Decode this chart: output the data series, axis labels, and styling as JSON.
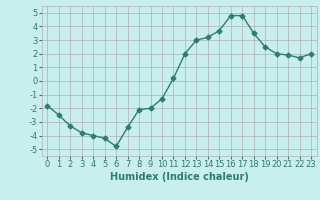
{
  "x": [
    0,
    1,
    2,
    3,
    4,
    5,
    6,
    7,
    8,
    9,
    10,
    11,
    12,
    13,
    14,
    15,
    16,
    17,
    18,
    19,
    20,
    21,
    22,
    23
  ],
  "y": [
    -1.8,
    -2.5,
    -3.3,
    -3.8,
    -4.0,
    -4.2,
    -4.8,
    -3.4,
    -2.1,
    -2.0,
    -1.3,
    0.2,
    2.0,
    3.0,
    3.2,
    3.7,
    4.8,
    4.8,
    3.5,
    2.5,
    2.0,
    1.9,
    1.7,
    2.0
  ],
  "line_color": "#2e7d6e",
  "marker": "D",
  "marker_size": 2.5,
  "line_width": 1.0,
  "bg_color": "#c8eeee",
  "grid_color": "#b0b0b0",
  "xlabel": "Humidex (Indice chaleur)",
  "xlabel_fontsize": 7,
  "tick_fontsize": 6,
  "ylim": [
    -5.5,
    5.5
  ],
  "xlim": [
    -0.5,
    23.5
  ],
  "yticks": [
    -5,
    -4,
    -3,
    -2,
    -1,
    0,
    1,
    2,
    3,
    4,
    5
  ],
  "xticks": [
    0,
    1,
    2,
    3,
    4,
    5,
    6,
    7,
    8,
    9,
    10,
    11,
    12,
    13,
    14,
    15,
    16,
    17,
    18,
    19,
    20,
    21,
    22,
    23
  ]
}
